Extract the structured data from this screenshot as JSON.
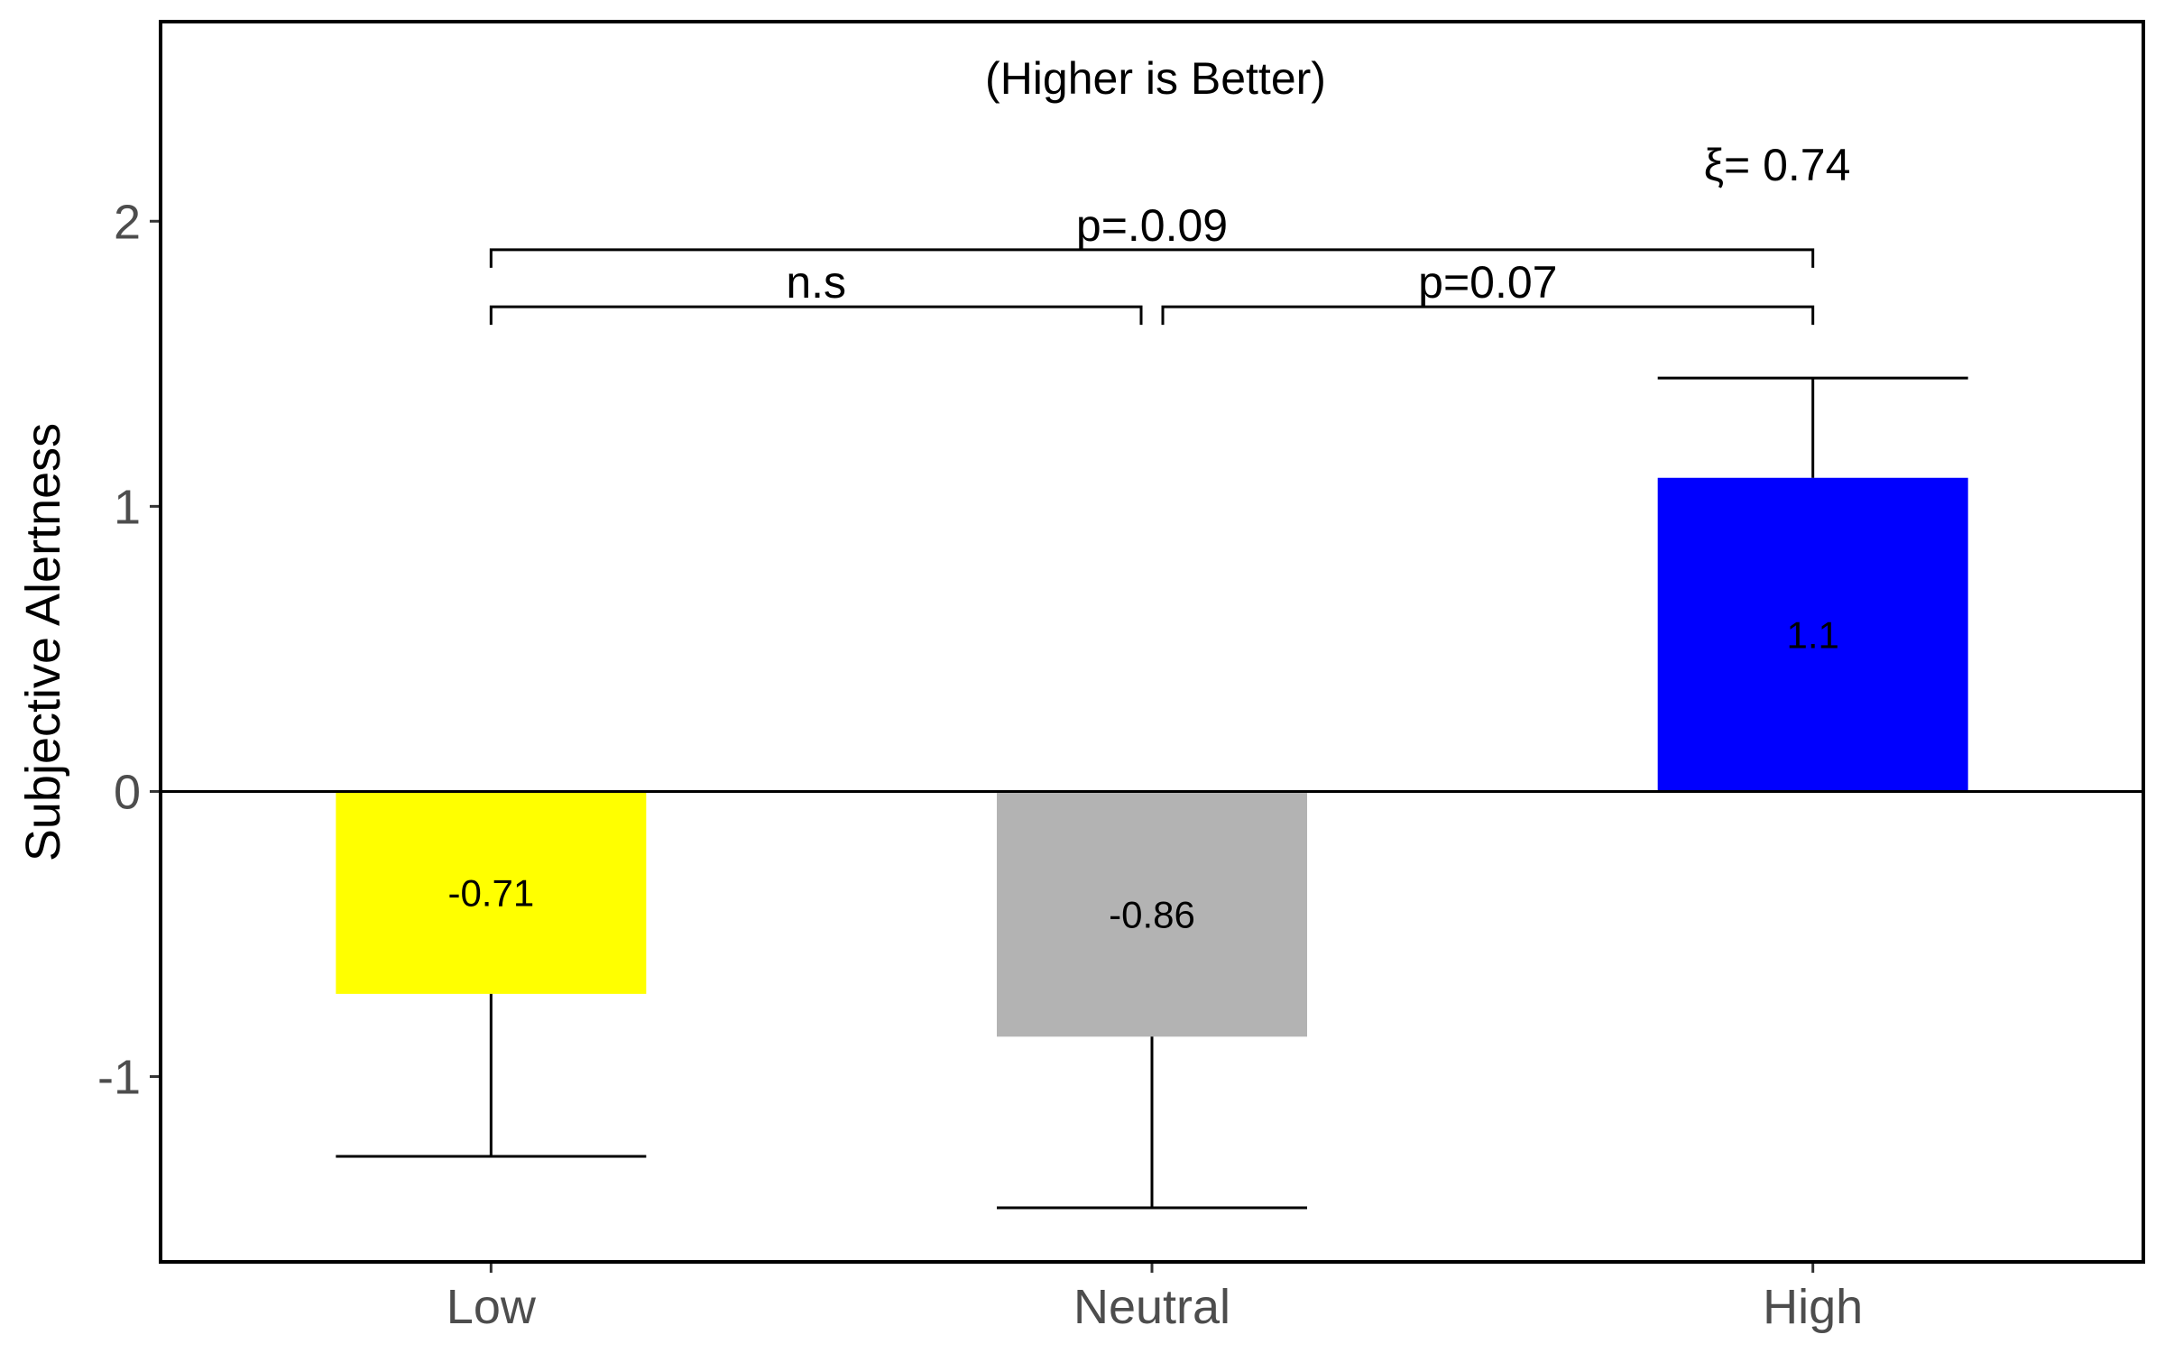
{
  "chart_data": {
    "type": "bar",
    "title": "",
    "xlabel": "",
    "ylabel": "Subjective Alertness",
    "categories": [
      "Low",
      "Neutral",
      "High"
    ],
    "values": [
      -0.71,
      -0.86,
      1.1
    ],
    "data_labels": [
      "-0.71",
      "-0.86",
      "1.1"
    ],
    "error_bars": [
      {
        "low": -1.28,
        "high": -0.71
      },
      {
        "low": -1.46,
        "high": -0.86
      },
      {
        "low": 1.1,
        "high": 1.45
      }
    ],
    "colors": [
      "#ffff00",
      "#b3b3b3",
      "#0000ff"
    ],
    "ylim": [
      -1.65,
      2.7
    ],
    "yticks": [
      -1,
      0,
      1,
      2
    ],
    "ytick_labels": [
      "-1",
      "0",
      "1",
      "2"
    ],
    "grid": false,
    "reference_line_y": 0,
    "annotations": {
      "note": "(Higher is Better)",
      "effect_size": "ξ= 0.74"
    },
    "comparisons": [
      {
        "from": 0,
        "to": 1,
        "label": "n.s",
        "level": 1.7
      },
      {
        "from": 1,
        "to": 2,
        "label": "p=0.07",
        "level": 1.7
      },
      {
        "from": 0,
        "to": 2,
        "label": "p=.0.09",
        "level": 1.9
      }
    ]
  }
}
